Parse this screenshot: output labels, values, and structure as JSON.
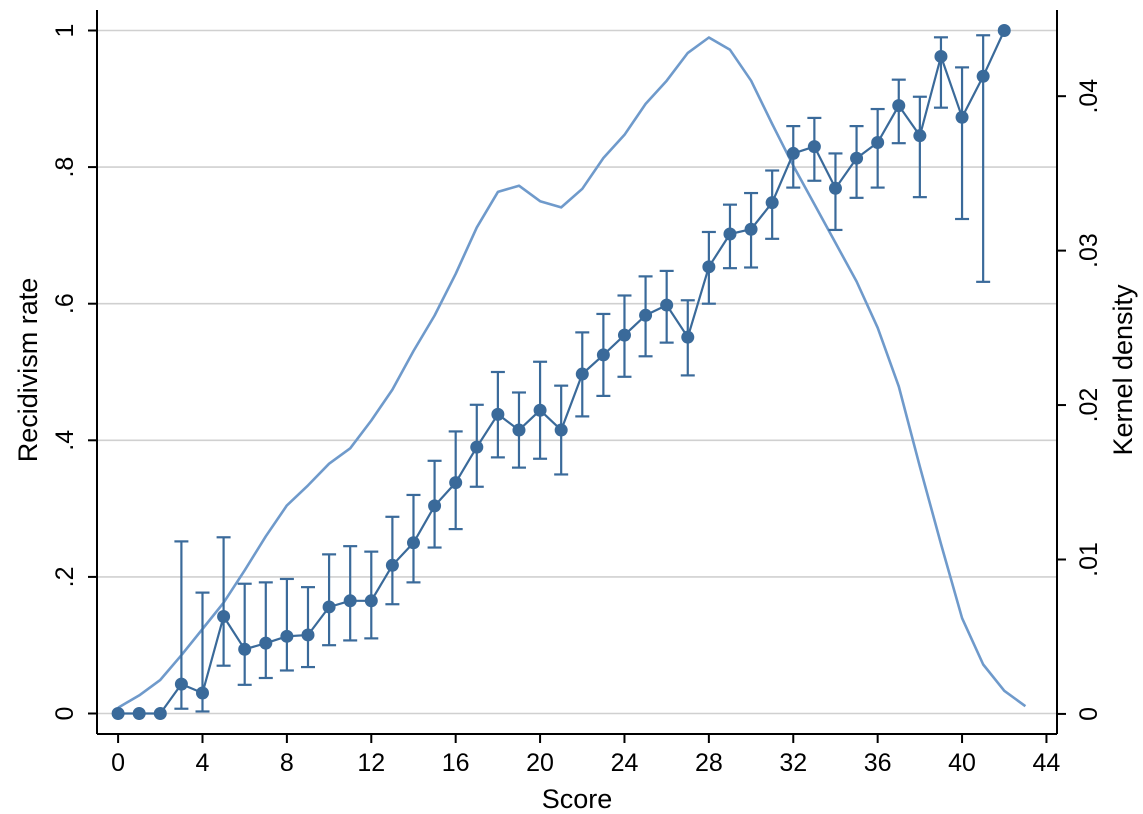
{
  "chart_data": {
    "type": "line",
    "xlabel": "Score",
    "ylabel_left": "Recidivism rate",
    "ylabel_right": "Kernel density",
    "xlim": [
      -1,
      44.5
    ],
    "ylim_left": [
      -0.03,
      1.03
    ],
    "ylim_right": [
      -0.0013,
      0.04558
    ],
    "x_ticks": [
      0,
      4,
      8,
      12,
      16,
      20,
      24,
      28,
      32,
      36,
      40,
      44
    ],
    "y_ticks_left": [
      {
        "value": 0,
        "label": "0"
      },
      {
        "value": 0.2,
        "label": ".2"
      },
      {
        "value": 0.4,
        "label": ".4"
      },
      {
        "value": 0.6,
        "label": ".6"
      },
      {
        "value": 0.8,
        "label": ".8"
      },
      {
        "value": 1,
        "label": "1"
      }
    ],
    "y_ticks_right": [
      {
        "value": 0,
        "label": "0"
      },
      {
        "value": 0.01,
        "label": ".01"
      },
      {
        "value": 0.02,
        "label": ".02"
      },
      {
        "value": 0.03,
        "label": ".03"
      },
      {
        "value": 0.04,
        "label": ".04"
      }
    ],
    "grid": true,
    "series": [
      {
        "axis": "left",
        "kind": "line-markers-errorbars",
        "color": "#3A6A9A",
        "points": [
          {
            "x": 0,
            "y": 0.0,
            "lo": null,
            "hi": null
          },
          {
            "x": 1,
            "y": 0.0,
            "lo": null,
            "hi": null
          },
          {
            "x": 2,
            "y": 0.0,
            "lo": null,
            "hi": null
          },
          {
            "x": 3,
            "y": 0.043,
            "lo": 0.007,
            "hi": 0.252
          },
          {
            "x": 4,
            "y": 0.03,
            "lo": 0.003,
            "hi": 0.177
          },
          {
            "x": 5,
            "y": 0.142,
            "lo": 0.07,
            "hi": 0.258
          },
          {
            "x": 6,
            "y": 0.094,
            "lo": 0.042,
            "hi": 0.19
          },
          {
            "x": 7,
            "y": 0.103,
            "lo": 0.052,
            "hi": 0.192
          },
          {
            "x": 8,
            "y": 0.113,
            "lo": 0.063,
            "hi": 0.197
          },
          {
            "x": 9,
            "y": 0.115,
            "lo": 0.068,
            "hi": 0.185
          },
          {
            "x": 10,
            "y": 0.156,
            "lo": 0.1,
            "hi": 0.233
          },
          {
            "x": 11,
            "y": 0.165,
            "lo": 0.107,
            "hi": 0.245
          },
          {
            "x": 12,
            "y": 0.165,
            "lo": 0.11,
            "hi": 0.237
          },
          {
            "x": 13,
            "y": 0.217,
            "lo": 0.16,
            "hi": 0.288
          },
          {
            "x": 14,
            "y": 0.25,
            "lo": 0.192,
            "hi": 0.32
          },
          {
            "x": 15,
            "y": 0.304,
            "lo": 0.243,
            "hi": 0.37
          },
          {
            "x": 16,
            "y": 0.338,
            "lo": 0.27,
            "hi": 0.413
          },
          {
            "x": 17,
            "y": 0.39,
            "lo": 0.332,
            "hi": 0.452
          },
          {
            "x": 18,
            "y": 0.438,
            "lo": 0.375,
            "hi": 0.5
          },
          {
            "x": 19,
            "y": 0.415,
            "lo": 0.36,
            "hi": 0.47
          },
          {
            "x": 20,
            "y": 0.444,
            "lo": 0.373,
            "hi": 0.515
          },
          {
            "x": 21,
            "y": 0.415,
            "lo": 0.35,
            "hi": 0.48
          },
          {
            "x": 22,
            "y": 0.497,
            "lo": 0.435,
            "hi": 0.558
          },
          {
            "x": 23,
            "y": 0.525,
            "lo": 0.465,
            "hi": 0.585
          },
          {
            "x": 24,
            "y": 0.554,
            "lo": 0.493,
            "hi": 0.612
          },
          {
            "x": 25,
            "y": 0.583,
            "lo": 0.523,
            "hi": 0.64
          },
          {
            "x": 26,
            "y": 0.598,
            "lo": 0.543,
            "hi": 0.648
          },
          {
            "x": 27,
            "y": 0.551,
            "lo": 0.495,
            "hi": 0.605
          },
          {
            "x": 28,
            "y": 0.654,
            "lo": 0.6,
            "hi": 0.705
          },
          {
            "x": 29,
            "y": 0.702,
            "lo": 0.652,
            "hi": 0.745
          },
          {
            "x": 30,
            "y": 0.709,
            "lo": 0.653,
            "hi": 0.762
          },
          {
            "x": 31,
            "y": 0.748,
            "lo": 0.695,
            "hi": 0.795
          },
          {
            "x": 32,
            "y": 0.82,
            "lo": 0.77,
            "hi": 0.86
          },
          {
            "x": 33,
            "y": 0.83,
            "lo": 0.78,
            "hi": 0.872
          },
          {
            "x": 34,
            "y": 0.769,
            "lo": 0.708,
            "hi": 0.82
          },
          {
            "x": 35,
            "y": 0.813,
            "lo": 0.755,
            "hi": 0.86
          },
          {
            "x": 36,
            "y": 0.836,
            "lo": 0.77,
            "hi": 0.885
          },
          {
            "x": 37,
            "y": 0.89,
            "lo": 0.835,
            "hi": 0.928
          },
          {
            "x": 38,
            "y": 0.846,
            "lo": 0.756,
            "hi": 0.903
          },
          {
            "x": 39,
            "y": 0.962,
            "lo": 0.887,
            "hi": 0.99
          },
          {
            "x": 40,
            "y": 0.873,
            "lo": 0.724,
            "hi": 0.946
          },
          {
            "x": 41,
            "y": 0.933,
            "lo": 0.632,
            "hi": 0.993
          },
          {
            "x": 42,
            "y": 1.0,
            "lo": null,
            "hi": null
          }
        ]
      },
      {
        "axis": "right",
        "kind": "density-line",
        "color": "#6F9ACB",
        "x": [
          0,
          1,
          2,
          3,
          4,
          5,
          6,
          7,
          8,
          9,
          10,
          11,
          12,
          13,
          14,
          15,
          16,
          17,
          18,
          19,
          20,
          21,
          22,
          23,
          24,
          25,
          26,
          27,
          28,
          29,
          30,
          31,
          32,
          33,
          34,
          35,
          36,
          37,
          38,
          39,
          40,
          41,
          42,
          43
        ],
        "y": [
          0.0004,
          0.0012,
          0.0022,
          0.0038,
          0.0055,
          0.0072,
          0.0093,
          0.0115,
          0.0135,
          0.0148,
          0.0162,
          0.0172,
          0.019,
          0.021,
          0.0235,
          0.0258,
          0.0285,
          0.0315,
          0.0338,
          0.0342,
          0.0332,
          0.0328,
          0.034,
          0.036,
          0.0375,
          0.0395,
          0.041,
          0.0428,
          0.0438,
          0.043,
          0.041,
          0.0382,
          0.0355,
          0.033,
          0.0305,
          0.028,
          0.025,
          0.0212,
          0.016,
          0.011,
          0.0062,
          0.0032,
          0.0015,
          0.0005
        ]
      }
    ]
  }
}
